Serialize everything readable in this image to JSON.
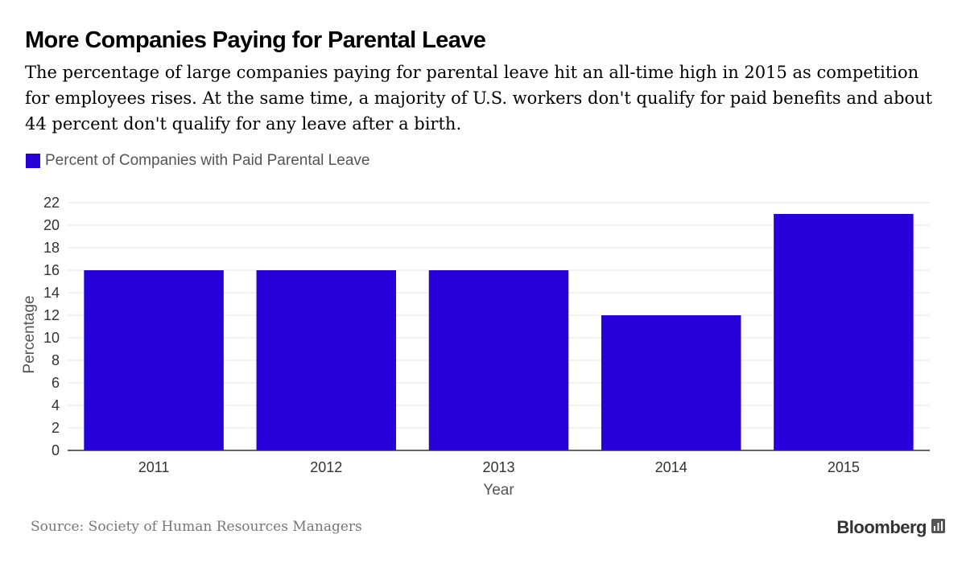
{
  "title": "More Companies Paying for Parental Leave",
  "subtitle": "The percentage of large companies paying for parental leave hit an all-time high in 2015 as competition for employees rises. At the same time, a majority of U.S. workers don't qualify for paid benefits and about 44 percent don't qualify for any leave after a birth.",
  "source": "Source: Society of Human Resources Managers",
  "brand": "Bloomberg",
  "colors": {
    "bar": "#2800D9",
    "grid": "#e6e6e6",
    "axis": "#333333"
  },
  "chart_data": {
    "type": "bar",
    "categories": [
      "2011",
      "2012",
      "2013",
      "2014",
      "2015"
    ],
    "series": [
      {
        "name": "Percent of Companies with Paid Parental Leave",
        "values": [
          16,
          16,
          16,
          12,
          21
        ]
      }
    ],
    "xlabel": "Year",
    "ylabel": "Percentage",
    "ylim": [
      0,
      22
    ],
    "yticks": [
      0,
      2,
      4,
      6,
      8,
      10,
      12,
      14,
      16,
      18,
      20,
      22
    ],
    "grid": true,
    "legend": "top-left"
  }
}
